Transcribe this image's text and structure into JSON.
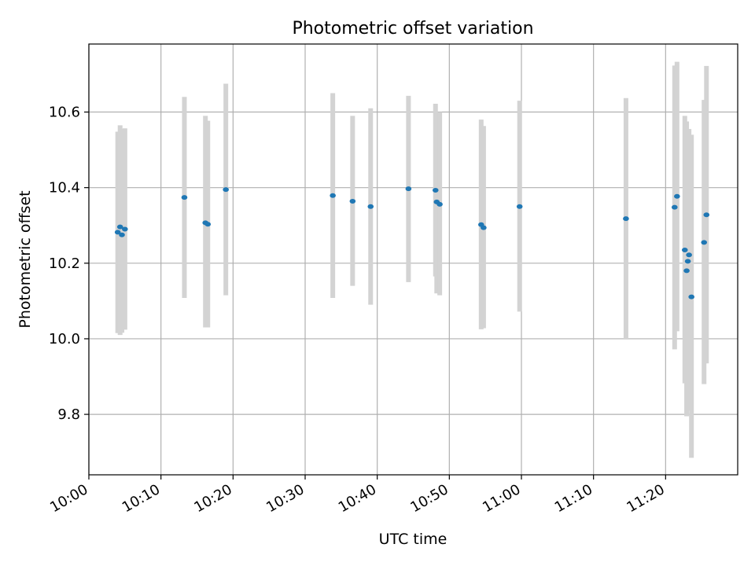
{
  "colors": {
    "point": "#1f77b4",
    "errorbar": "#d3d3d3",
    "grid": "#b0b0b0",
    "axis": "#000000"
  },
  "chart_data": {
    "type": "scatter",
    "title": "Photometric offset variation",
    "xlabel": "UTC time",
    "ylabel": "Photometric offset",
    "x_unit": "UTC time (HH:MM)",
    "xlim": [
      "10:00",
      "11:30"
    ],
    "ylim": [
      9.64,
      10.78
    ],
    "grid": true,
    "x_ticks": [
      "10:00",
      "10:10",
      "10:20",
      "10:30",
      "10:40",
      "10:50",
      "11:00",
      "11:10",
      "11:20"
    ],
    "y_ticks": [
      "9.8",
      "10.0",
      "10.2",
      "10.4",
      "10.6"
    ],
    "points": [
      {
        "x": "10:04:00",
        "y": 10.282,
        "ylo": 10.015,
        "yhi": 10.548
      },
      {
        "x": "10:04:20",
        "y": 10.296,
        "ylo": 10.01,
        "yhi": 10.565
      },
      {
        "x": "10:04:35",
        "y": 10.275,
        "ylo": 10.016,
        "yhi": 10.555
      },
      {
        "x": "10:05:00",
        "y": 10.29,
        "ylo": 10.024,
        "yhi": 10.557
      },
      {
        "x": "10:13:15",
        "y": 10.374,
        "ylo": 10.108,
        "yhi": 10.64
      },
      {
        "x": "10:16:10",
        "y": 10.307,
        "ylo": 10.03,
        "yhi": 10.59
      },
      {
        "x": "10:16:30",
        "y": 10.303,
        "ylo": 10.03,
        "yhi": 10.577
      },
      {
        "x": "10:19:00",
        "y": 10.395,
        "ylo": 10.115,
        "yhi": 10.675
      },
      {
        "x": "10:33:50",
        "y": 10.379,
        "ylo": 10.108,
        "yhi": 10.65
      },
      {
        "x": "10:36:35",
        "y": 10.364,
        "ylo": 10.14,
        "yhi": 10.59
      },
      {
        "x": "10:39:05",
        "y": 10.35,
        "ylo": 10.09,
        "yhi": 10.61
      },
      {
        "x": "10:44:20",
        "y": 10.397,
        "ylo": 10.15,
        "yhi": 10.643
      },
      {
        "x": "10:48:05",
        "y": 10.393,
        "ylo": 10.165,
        "yhi": 10.622
      },
      {
        "x": "10:48:15",
        "y": 10.362,
        "ylo": 10.12,
        "yhi": 10.6
      },
      {
        "x": "10:48:40",
        "y": 10.356,
        "ylo": 10.115,
        "yhi": 10.6
      },
      {
        "x": "10:54:25",
        "y": 10.302,
        "ylo": 10.025,
        "yhi": 10.58
      },
      {
        "x": "10:54:45",
        "y": 10.294,
        "ylo": 10.028,
        "yhi": 10.563
      },
      {
        "x": "10:59:45",
        "y": 10.35,
        "ylo": 10.072,
        "yhi": 10.63
      },
      {
        "x": "11:14:30",
        "y": 10.318,
        "ylo": 10.0,
        "yhi": 10.637
      },
      {
        "x": "11:21:15",
        "y": 10.348,
        "ylo": 9.972,
        "yhi": 10.723
      },
      {
        "x": "11:21:35",
        "y": 10.377,
        "ylo": 10.02,
        "yhi": 10.733
      },
      {
        "x": "11:22:40",
        "y": 10.235,
        "ylo": 9.882,
        "yhi": 10.59
      },
      {
        "x": "11:22:55",
        "y": 10.18,
        "ylo": 9.795,
        "yhi": 10.575
      },
      {
        "x": "11:23:05",
        "y": 10.205,
        "ylo": 9.81,
        "yhi": 10.555
      },
      {
        "x": "11:23:15",
        "y": 10.222,
        "ylo": 9.9,
        "yhi": 10.555
      },
      {
        "x": "11:23:35",
        "y": 10.111,
        "ylo": 9.685,
        "yhi": 10.54
      },
      {
        "x": "11:25:20",
        "y": 10.255,
        "ylo": 9.88,
        "yhi": 10.632
      },
      {
        "x": "11:25:40",
        "y": 10.328,
        "ylo": 9.935,
        "yhi": 10.722
      }
    ]
  }
}
